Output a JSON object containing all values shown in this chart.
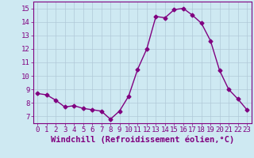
{
  "x": [
    0,
    1,
    2,
    3,
    4,
    5,
    6,
    7,
    8,
    9,
    10,
    11,
    12,
    13,
    14,
    15,
    16,
    17,
    18,
    19,
    20,
    21,
    22,
    23
  ],
  "y": [
    8.7,
    8.6,
    8.2,
    7.7,
    7.8,
    7.6,
    7.5,
    7.4,
    6.8,
    7.4,
    8.5,
    10.5,
    12.0,
    14.4,
    14.3,
    14.9,
    15.0,
    14.5,
    13.9,
    12.6,
    10.4,
    9.0,
    8.3,
    7.5
  ],
  "line_color": "#800080",
  "marker": "D",
  "marker_size": 2.5,
  "bg_color": "#cee9f2",
  "grid_color": "#b0c8d8",
  "xlabel": "Windchill (Refroidissement éolien,°C)",
  "xlabel_color": "#800080",
  "xlabel_fontsize": 7.5,
  "ylabel_ticks": [
    7,
    8,
    9,
    10,
    11,
    12,
    13,
    14,
    15
  ],
  "xlim": [
    -0.5,
    23.5
  ],
  "ylim": [
    6.5,
    15.5
  ],
  "tick_fontsize": 6.5,
  "line_width": 1.0
}
